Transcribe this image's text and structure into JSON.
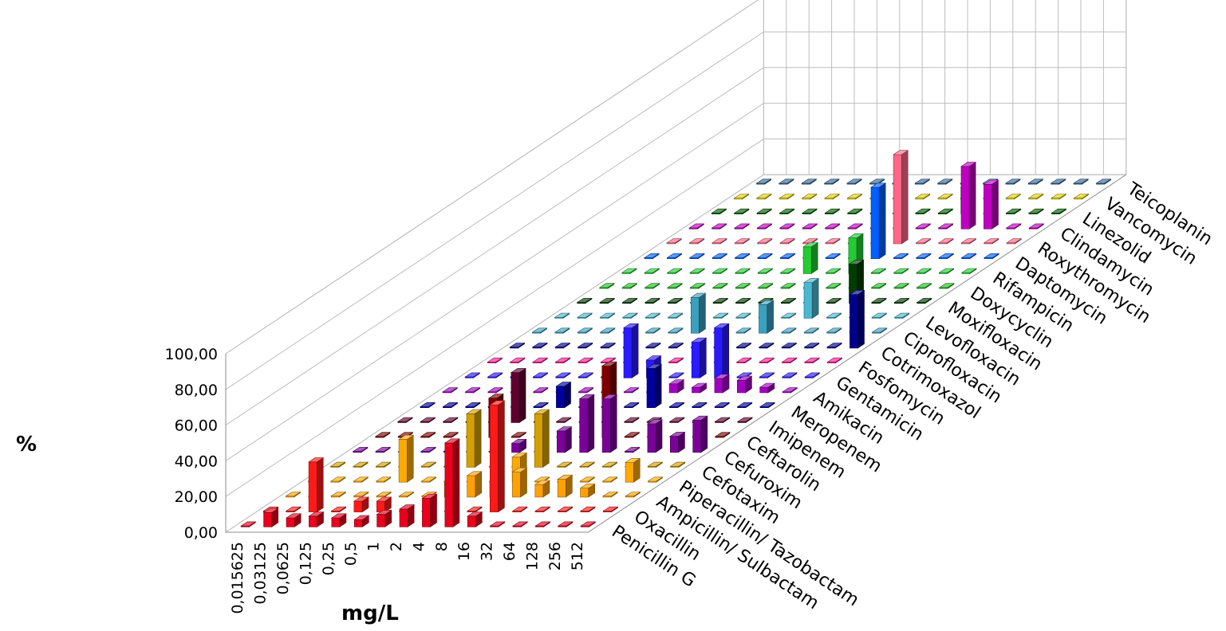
{
  "chart_data": {
    "type": "bar",
    "xlabel": "mg/L",
    "ylabel": "%",
    "ylim": [
      0,
      100
    ],
    "yticks": [
      "0,00",
      "20,00",
      "40,00",
      "60,00",
      "80,00",
      "100,00"
    ],
    "grid": true,
    "categories": [
      "0,015625",
      "0,03125",
      "0,0625",
      "0,125",
      "0,25",
      "0,5",
      "1",
      "2",
      "4",
      "8",
      "16",
      "32",
      "64",
      "128",
      "256",
      "512"
    ],
    "series": [
      {
        "name": "Penicillin G",
        "color": "#e8001c",
        "values": [
          0.5,
          8,
          5,
          6,
          5,
          4,
          7,
          10,
          16,
          47,
          6,
          0.5,
          0.5,
          0.5,
          0.5,
          0.5
        ]
      },
      {
        "name": "Oxacillin",
        "color": "#ff1a1a",
        "values": [
          0.5,
          0.5,
          28,
          0.5,
          6,
          6,
          0.5,
          0.5,
          0.5,
          0.5,
          60,
          0.5,
          0.5,
          0.5,
          0.5,
          0.5
        ]
      },
      {
        "name": "Ampicillin/ Sulbactam",
        "color": "#ffa100",
        "values": [
          0.5,
          0.5,
          0.5,
          0.5,
          0.5,
          0.5,
          0.5,
          8,
          12,
          8,
          14,
          7,
          10,
          5,
          0.5,
          0.5
        ]
      },
      {
        "name": "Piperacillin/ Tazobactam",
        "color": "#ffaa00",
        "values": [
          0.5,
          0.5,
          0.5,
          0.5,
          24,
          0.5,
          0.5,
          0.5,
          0.5,
          14,
          0.5,
          0.5,
          0.5,
          0.5,
          11,
          0.5
        ]
      },
      {
        "name": "Cefotaxim",
        "color": "#d4a000",
        "values": [
          0.5,
          0.5,
          0.5,
          0.5,
          0.5,
          0.5,
          30,
          0.5,
          0.5,
          30,
          0.5,
          0.5,
          0.5,
          0.5,
          0.5,
          0.5
        ]
      },
      {
        "name": "Cefuroxim",
        "color": "#7a0099",
        "values": [
          0.5,
          0.5,
          0.5,
          0.5,
          0.5,
          0.5,
          0.5,
          5,
          0.5,
          12,
          30,
          30,
          0.5,
          16,
          9,
          18
        ]
      },
      {
        "name": "Ceftarolin",
        "color": "#800000",
        "values": [
          0.5,
          0.5,
          0.5,
          0.5,
          0.5,
          22,
          0.5,
          0.5,
          0.5,
          0.5,
          40,
          0.5,
          0.5,
          0.5,
          0.5,
          0.5
        ]
      },
      {
        "name": "Imipenem",
        "color": "#600030",
        "values": [
          0.5,
          0.5,
          0.5,
          0.5,
          0.5,
          28,
          0.5,
          0.5,
          0.5,
          0.5,
          0.5,
          0.5,
          0.5,
          0.5,
          0.5,
          0.5
        ]
      },
      {
        "name": "Meropenem",
        "color": "#0000a0",
        "values": [
          0.5,
          0.5,
          0.5,
          0.5,
          0.5,
          0.5,
          12,
          0.5,
          0.5,
          0.5,
          22,
          0.5,
          0.5,
          0.5,
          0.5,
          0.5
        ]
      },
      {
        "name": "Amikacin",
        "color": "#a000c0",
        "values": [
          0.5,
          0.5,
          0.5,
          0.5,
          0.5,
          0.5,
          0.5,
          0.5,
          0.5,
          0.5,
          5,
          3,
          8,
          7,
          3,
          0.5
        ]
      },
      {
        "name": "Gentamicin",
        "color": "#2a1aff",
        "values": [
          0.5,
          0.5,
          0.5,
          0.5,
          0.5,
          0.5,
          0.5,
          28,
          10,
          0.5,
          20,
          28,
          0.5,
          0.5,
          0.5,
          0.5
        ]
      },
      {
        "name": "Fosfomycin",
        "color": "#ff1a9a",
        "values": [
          0.5,
          0.5,
          0.5,
          0.5,
          0.5,
          0.5,
          0.5,
          0.5,
          0.5,
          0.5,
          0.5,
          0.5,
          0.5,
          0.5,
          0.5,
          0.5
        ]
      },
      {
        "name": "Cotrimoxazol",
        "color": "#00008a",
        "values": [
          0.5,
          0.5,
          0.5,
          0.5,
          0.5,
          0.5,
          0.5,
          0.5,
          0.5,
          0.5,
          0.5,
          0.5,
          0.5,
          0.5,
          0.5,
          30
        ]
      },
      {
        "name": "Ciprofloxacin",
        "color": "#3aa0c0",
        "values": [
          0.5,
          0.5,
          0.5,
          0.5,
          0.5,
          0.5,
          0.5,
          20,
          0.5,
          0.5,
          16,
          0.5,
          0.5,
          0.5,
          0.5,
          0.5
        ]
      },
      {
        "name": "Levofloxacin",
        "color": "#4ab8d0",
        "values": [
          0.5,
          0.5,
          0.5,
          0.5,
          0.5,
          0.5,
          0.5,
          0.5,
          0.5,
          0.5,
          0.5,
          20,
          0.5,
          0.5,
          0.5,
          0.5
        ]
      },
      {
        "name": "Moxifloxacin",
        "color": "#003c00",
        "values": [
          0.5,
          0.5,
          0.5,
          0.5,
          0.5,
          0.5,
          0.5,
          0.5,
          0.5,
          0.5,
          0.5,
          0.5,
          22,
          0.5,
          0.5,
          0.5
        ]
      },
      {
        "name": "Doxycyclin",
        "color": "#20c020",
        "values": [
          0.5,
          0.5,
          0.5,
          0.5,
          0.5,
          0.5,
          0.5,
          0.5,
          0.5,
          0.5,
          0.5,
          0.5,
          0.5,
          0.5,
          0.5,
          0.5
        ]
      },
      {
        "name": "Rifampicin",
        "color": "#22cc33",
        "values": [
          0.5,
          0.5,
          0.5,
          0.5,
          0.5,
          0.5,
          0.5,
          0.5,
          15,
          0.5,
          20,
          0.5,
          0.5,
          0.5,
          0.5,
          0.5
        ]
      },
      {
        "name": "Daptomycin",
        "color": "#0060ff",
        "values": [
          0.5,
          0.5,
          0.5,
          0.5,
          0.5,
          0.5,
          0.5,
          0.5,
          0.5,
          0.5,
          40,
          0.5,
          0.5,
          0.5,
          0.5,
          0.5
        ]
      },
      {
        "name": "Roxythromycin",
        "color": "#ff6688",
        "values": [
          0.5,
          0.5,
          0.5,
          0.5,
          0.5,
          0.5,
          0.5,
          0.5,
          0.5,
          0.5,
          50,
          0.5,
          0.5,
          0.5,
          0.5,
          0.5
        ]
      },
      {
        "name": "Clindamycin",
        "color": "#c000c0",
        "values": [
          0.5,
          0.5,
          0.5,
          0.5,
          0.5,
          0.5,
          0.5,
          0.5,
          0.5,
          0.5,
          0.5,
          0.5,
          35,
          25,
          0.5,
          0.5
        ]
      },
      {
        "name": "Linezolid",
        "color": "#006000",
        "values": [
          0.5,
          0.5,
          0.5,
          0.5,
          0.5,
          0.5,
          0.5,
          0.5,
          0.5,
          0.5,
          0.5,
          15,
          0.5,
          0.5,
          0.5,
          0.5
        ]
      },
      {
        "name": "Vancomycin",
        "color": "#e0d000",
        "values": [
          0.5,
          0.5,
          0.5,
          0.5,
          0.5,
          0.5,
          0.5,
          0.5,
          0.5,
          0.5,
          0.5,
          0.5,
          0.5,
          0.5,
          0.5,
          0.5
        ]
      },
      {
        "name": "Teicoplanin",
        "color": "#336699",
        "values": [
          0.5,
          0.5,
          0.5,
          0.5,
          0.5,
          0.5,
          0.5,
          0.5,
          0.5,
          0.5,
          0.5,
          0.5,
          0.5,
          0.5,
          0.5,
          0.5
        ]
      }
    ]
  }
}
